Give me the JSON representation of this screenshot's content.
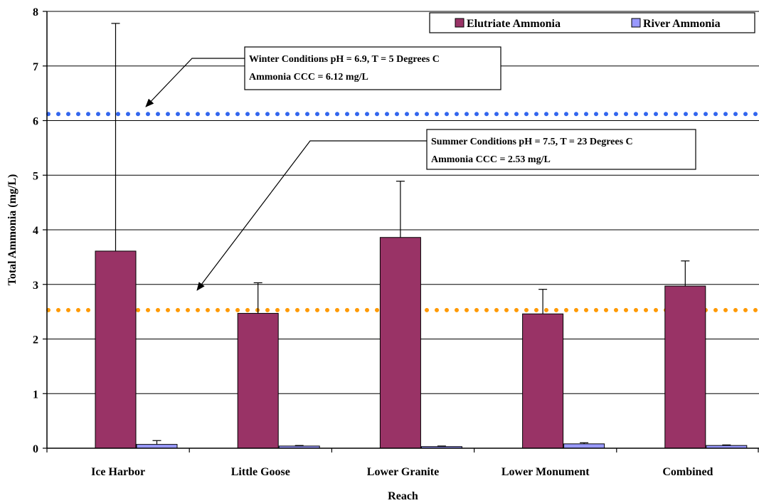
{
  "chart_data": {
    "type": "bar",
    "xlabel": "Reach",
    "ylabel": "Total Ammonia (mg/L)",
    "ylim": [
      0,
      8
    ],
    "yticks": [
      "0",
      "1",
      "2",
      "3",
      "4",
      "5",
      "6",
      "7",
      "8"
    ],
    "grid": "horizontal",
    "legend_position": "top-right",
    "categories": [
      "Ice Harbor",
      "Little Goose",
      "Lower Granite",
      "Lower Monument",
      "Combined"
    ],
    "series": [
      {
        "name": "Elutriate Ammonia",
        "color": "#993366",
        "values": [
          3.61,
          2.47,
          3.86,
          2.46,
          2.97
        ],
        "error_upper": [
          7.78,
          3.03,
          4.89,
          2.91,
          3.43
        ]
      },
      {
        "name": "River Ammonia",
        "color": "#9999ff",
        "values": [
          0.07,
          0.04,
          0.03,
          0.08,
          0.05
        ],
        "error_upper": [
          0.14,
          0.05,
          0.04,
          0.1,
          0.06
        ]
      }
    ],
    "reference_lines": [
      {
        "value": 6.12,
        "color": "#3366ee",
        "style": "dotted"
      },
      {
        "value": 2.53,
        "color": "#ff9900",
        "style": "dotted"
      }
    ],
    "annotations": [
      {
        "line1": "Winter Conditions pH = 6.9, T = 5 Degrees C",
        "line2": "Ammonia CCC = 6.12 mg/L"
      },
      {
        "line1": "Summer Conditions pH = 7.5, T = 23 Degrees C",
        "line2": "Ammonia CCC = 2.53 mg/L"
      }
    ]
  }
}
